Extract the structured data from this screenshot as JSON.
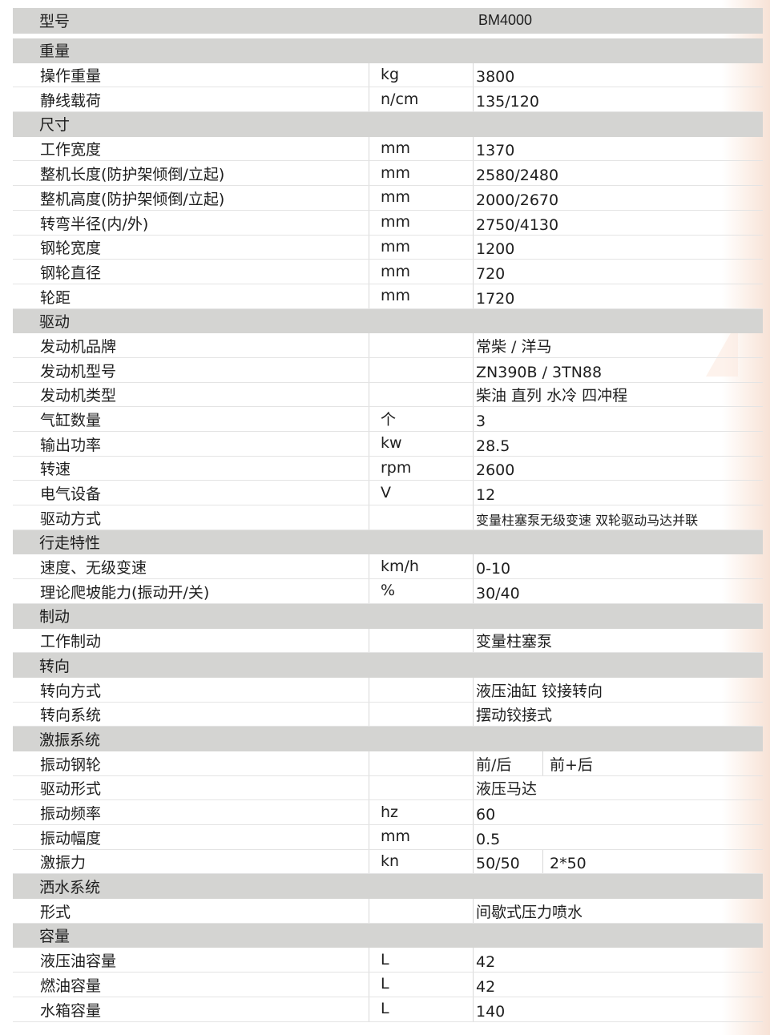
{
  "model": {
    "label": "型号",
    "value": "BM4000"
  },
  "sections": [
    {
      "title": "重量",
      "rows": [
        {
          "name": "操作重量",
          "unit": "kg",
          "value": "3800"
        },
        {
          "name": "静线载荷",
          "unit": "n/cm",
          "value": "135/120"
        }
      ]
    },
    {
      "title": "尺寸",
      "rows": [
        {
          "name": "工作宽度",
          "unit": "mm",
          "value": "1370"
        },
        {
          "name": "整机长度(防护架倾倒/立起)",
          "unit": "mm",
          "value": "2580/2480"
        },
        {
          "name": "整机高度(防护架倾倒/立起)",
          "unit": "mm",
          "value": "2000/2670"
        },
        {
          "name": "转弯半径(内/外)",
          "unit": "mm",
          "value": "2750/4130"
        },
        {
          "name": "钢轮宽度",
          "unit": "mm",
          "value": "1200"
        },
        {
          "name": "钢轮直径",
          "unit": "mm",
          "value": "720"
        },
        {
          "name": "轮距",
          "unit": "mm",
          "value": "1720"
        }
      ]
    },
    {
      "title": "驱动",
      "rows": [
        {
          "name": "发动机品牌",
          "unit": "",
          "value": "常柴 / 洋马"
        },
        {
          "name": "发动机型号",
          "unit": "",
          "value": "ZN390B / 3TN88"
        },
        {
          "name": "发动机类型",
          "unit": "",
          "value": "柴油 直列 水冷 四冲程"
        },
        {
          "name": "气缸数量",
          "unit": "个",
          "value": "3"
        },
        {
          "name": "输出功率",
          "unit": "kw",
          "value": "28.5"
        },
        {
          "name": "转速",
          "unit": "rpm",
          "value": "2600"
        },
        {
          "name": "电气设备",
          "unit": "V",
          "value": "12"
        },
        {
          "name": "驱动方式",
          "unit": "",
          "value": "变量柱塞泵无级变速 双轮驱动马达并联",
          "small": true
        }
      ]
    },
    {
      "title": "行走特性",
      "rows": [
        {
          "name": "速度、无级变速",
          "unit": "km/h",
          "value": "0-10"
        },
        {
          "name": "理论爬坡能力(振动开/关)",
          "unit": "%",
          "value": "30/40"
        }
      ]
    },
    {
      "title": "制动",
      "rows": [
        {
          "name": "工作制动",
          "unit": "",
          "value": "变量柱塞泵"
        }
      ]
    },
    {
      "title": "转向",
      "rows": [
        {
          "name": "转向方式",
          "unit": "",
          "value": "液压油缸 铰接转向"
        },
        {
          "name": "转向系统",
          "unit": "",
          "value": "摆动铰接式"
        }
      ]
    },
    {
      "title": "激振系统",
      "rows": [
        {
          "name": "振动钢轮",
          "unit": "",
          "value": "前/后",
          "value2": "前+后"
        },
        {
          "name": "驱动形式",
          "unit": "",
          "value": "液压马达"
        },
        {
          "name": "振动频率",
          "unit": "hz",
          "value": "60"
        },
        {
          "name": "振动幅度",
          "unit": "mm",
          "value": "0.5"
        },
        {
          "name": "激振力",
          "unit": "kn",
          "value": "50/50",
          "value2": "2*50"
        }
      ]
    },
    {
      "title": "洒水系统",
      "rows": [
        {
          "name": "形式",
          "unit": "",
          "value": "间歇式压力喷水"
        }
      ]
    },
    {
      "title": "容量",
      "rows": [
        {
          "name": "液压油容量",
          "unit": "L",
          "value": "42"
        },
        {
          "name": "燃油容量",
          "unit": "L",
          "value": "42"
        },
        {
          "name": "水箱容量",
          "unit": "L",
          "value": "140"
        }
      ]
    }
  ]
}
